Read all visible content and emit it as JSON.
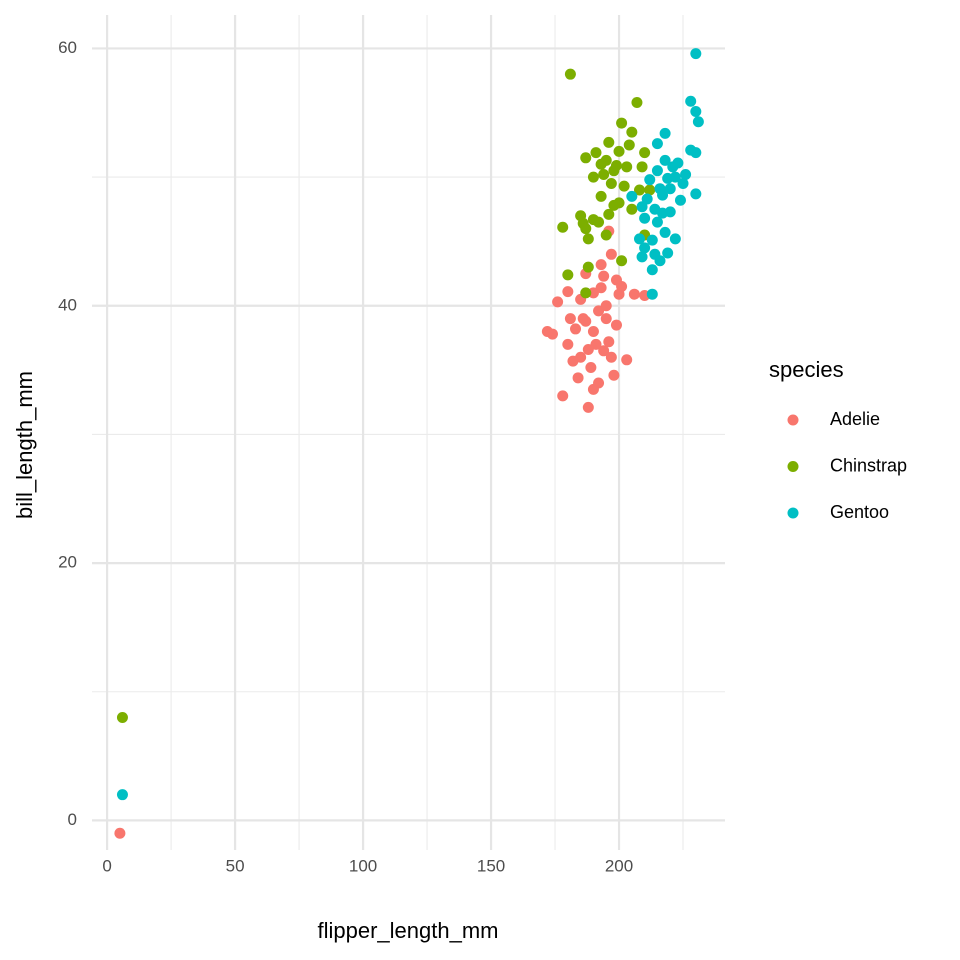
{
  "chart_data": {
    "type": "scatter",
    "x_label": "flipper_length_mm",
    "y_label": "bill_length_mm",
    "xlim": [
      -5.9,
      241.4
    ],
    "ylim": [
      -2.3,
      62.6
    ],
    "xticks": [
      0,
      50,
      100,
      150,
      200
    ],
    "yticks": [
      0,
      20,
      40,
      60
    ],
    "x_minor_ticks": [
      25,
      75,
      125,
      175,
      225
    ],
    "y_minor_ticks": [
      10,
      30,
      50
    ],
    "grid": true,
    "legend_title": "species",
    "legend_position": "right",
    "series": [
      {
        "name": "Adelie",
        "color": "#F8766D",
        "x": [
          172,
          174,
          178,
          188,
          181,
          185,
          190,
          195,
          197,
          200,
          203,
          210,
          187,
          193,
          196,
          192,
          198,
          184,
          180,
          176,
          190,
          186,
          191,
          194,
          189,
          199,
          201,
          206,
          183,
          188,
          192,
          196,
          185,
          180,
          194,
          190,
          182,
          195,
          187,
          193,
          197,
          199,
          5
        ],
        "values": [
          38,
          37.8,
          33,
          32.1,
          39,
          36,
          38,
          40,
          44,
          40.9,
          35.8,
          40.8,
          42.5,
          43.2,
          45.8,
          34,
          34.6,
          34.4,
          41.1,
          40.3,
          41,
          39,
          37,
          36.5,
          35.2,
          38.5,
          41.5,
          40.9,
          38.2,
          36.6,
          39.6,
          37.2,
          40.5,
          37,
          42.3,
          33.5,
          35.7,
          39,
          38.8,
          41.4,
          36,
          42,
          -1
        ]
      },
      {
        "name": "Chinstrap",
        "color": "#7CAE00",
        "x": [
          181,
          207,
          201,
          205,
          196,
          195,
          187,
          193,
          198,
          200,
          203,
          210,
          190,
          197,
          202,
          178,
          185,
          187,
          192,
          195,
          200,
          205,
          188,
          190,
          199,
          191,
          194,
          208,
          212,
          210,
          201,
          188,
          187,
          180,
          193,
          196,
          209,
          204,
          198,
          186,
          6
        ],
        "values": [
          58,
          55.8,
          54.2,
          53.5,
          52.7,
          51.3,
          51.5,
          51,
          50.5,
          52,
          50.8,
          51.9,
          50,
          49.5,
          49.3,
          46.1,
          47,
          46,
          46.5,
          45.5,
          48,
          47.5,
          45.2,
          46.7,
          50.9,
          51.9,
          50.2,
          49,
          49,
          45.5,
          43.5,
          43,
          41,
          42.4,
          48.5,
          47.1,
          50.8,
          52.5,
          47.8,
          46.4,
          8
        ]
      },
      {
        "name": "Gentoo",
        "color": "#00BFC4",
        "x": [
          230,
          228,
          230,
          231,
          218,
          215,
          228,
          230,
          221,
          226,
          223,
          219,
          217,
          230,
          225,
          212,
          214,
          210,
          208,
          214,
          216,
          213,
          209,
          213,
          218,
          220,
          222,
          215,
          211,
          217,
          219,
          213,
          210,
          216,
          222,
          224,
          215,
          209,
          218,
          220,
          205,
          6
        ],
        "values": [
          59.6,
          55.9,
          55.1,
          54.3,
          53.4,
          52.6,
          52.1,
          51.9,
          50.8,
          50.2,
          51.1,
          49.9,
          48.6,
          48.7,
          49.5,
          49.8,
          47.5,
          46.8,
          45.2,
          44,
          43.5,
          42.8,
          43.8,
          40.9,
          45.7,
          47.3,
          45.2,
          46.5,
          48.3,
          47.2,
          44.1,
          45.1,
          44.5,
          49.1,
          50,
          48.2,
          50.5,
          47.7,
          51.3,
          49.1,
          48.5,
          2
        ]
      }
    ]
  }
}
